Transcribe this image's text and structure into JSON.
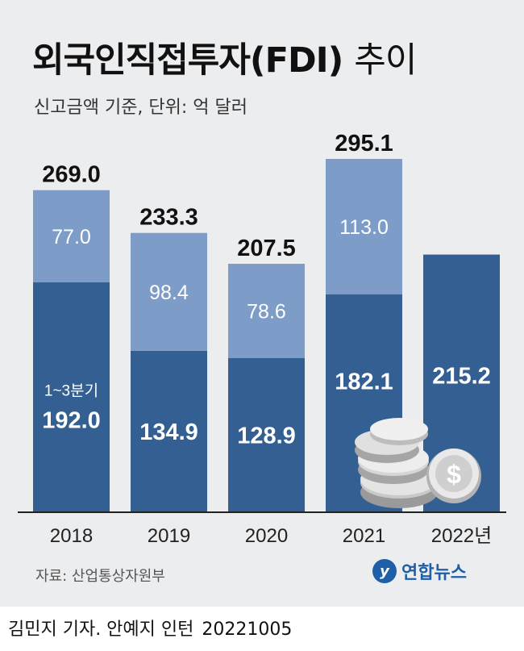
{
  "title_bold": "외국인직접투자(FDI)",
  "title_light": "추이",
  "subtitle": "신고금액 기준, 단위: 억 달러",
  "source": "자료: 산업통상자원부",
  "logo_text": "연합뉴스",
  "credit": "김민지 기자. 안예지 인턴",
  "credit_date": "20221005",
  "colors": {
    "dark": "#345f93",
    "light": "#7d9dc8",
    "panel": "#ecedef"
  },
  "chart_data": {
    "type": "bar",
    "stacked": true,
    "categories": [
      "2018",
      "2019",
      "2020",
      "2021",
      "2022년"
    ],
    "series": [
      {
        "name": "1~3분기",
        "values": [
          192.0,
          134.9,
          128.9,
          182.1,
          215.2
        ]
      },
      {
        "values": [
          77.0,
          98.4,
          78.6,
          113.0,
          null
        ]
      }
    ],
    "totals": [
      269.0,
      233.3,
      207.5,
      295.1,
      null
    ],
    "value_labels": {
      "bottom": [
        "192.0",
        "134.9",
        "128.9",
        "182.1",
        "215.2"
      ],
      "top": [
        "77.0",
        "98.4",
        "78.6",
        "113.0",
        null
      ],
      "totals": [
        "269.0",
        "233.3",
        "207.5",
        "295.1",
        null
      ]
    },
    "annotation": "1~3분기",
    "ylim": [
      0,
      300
    ]
  }
}
